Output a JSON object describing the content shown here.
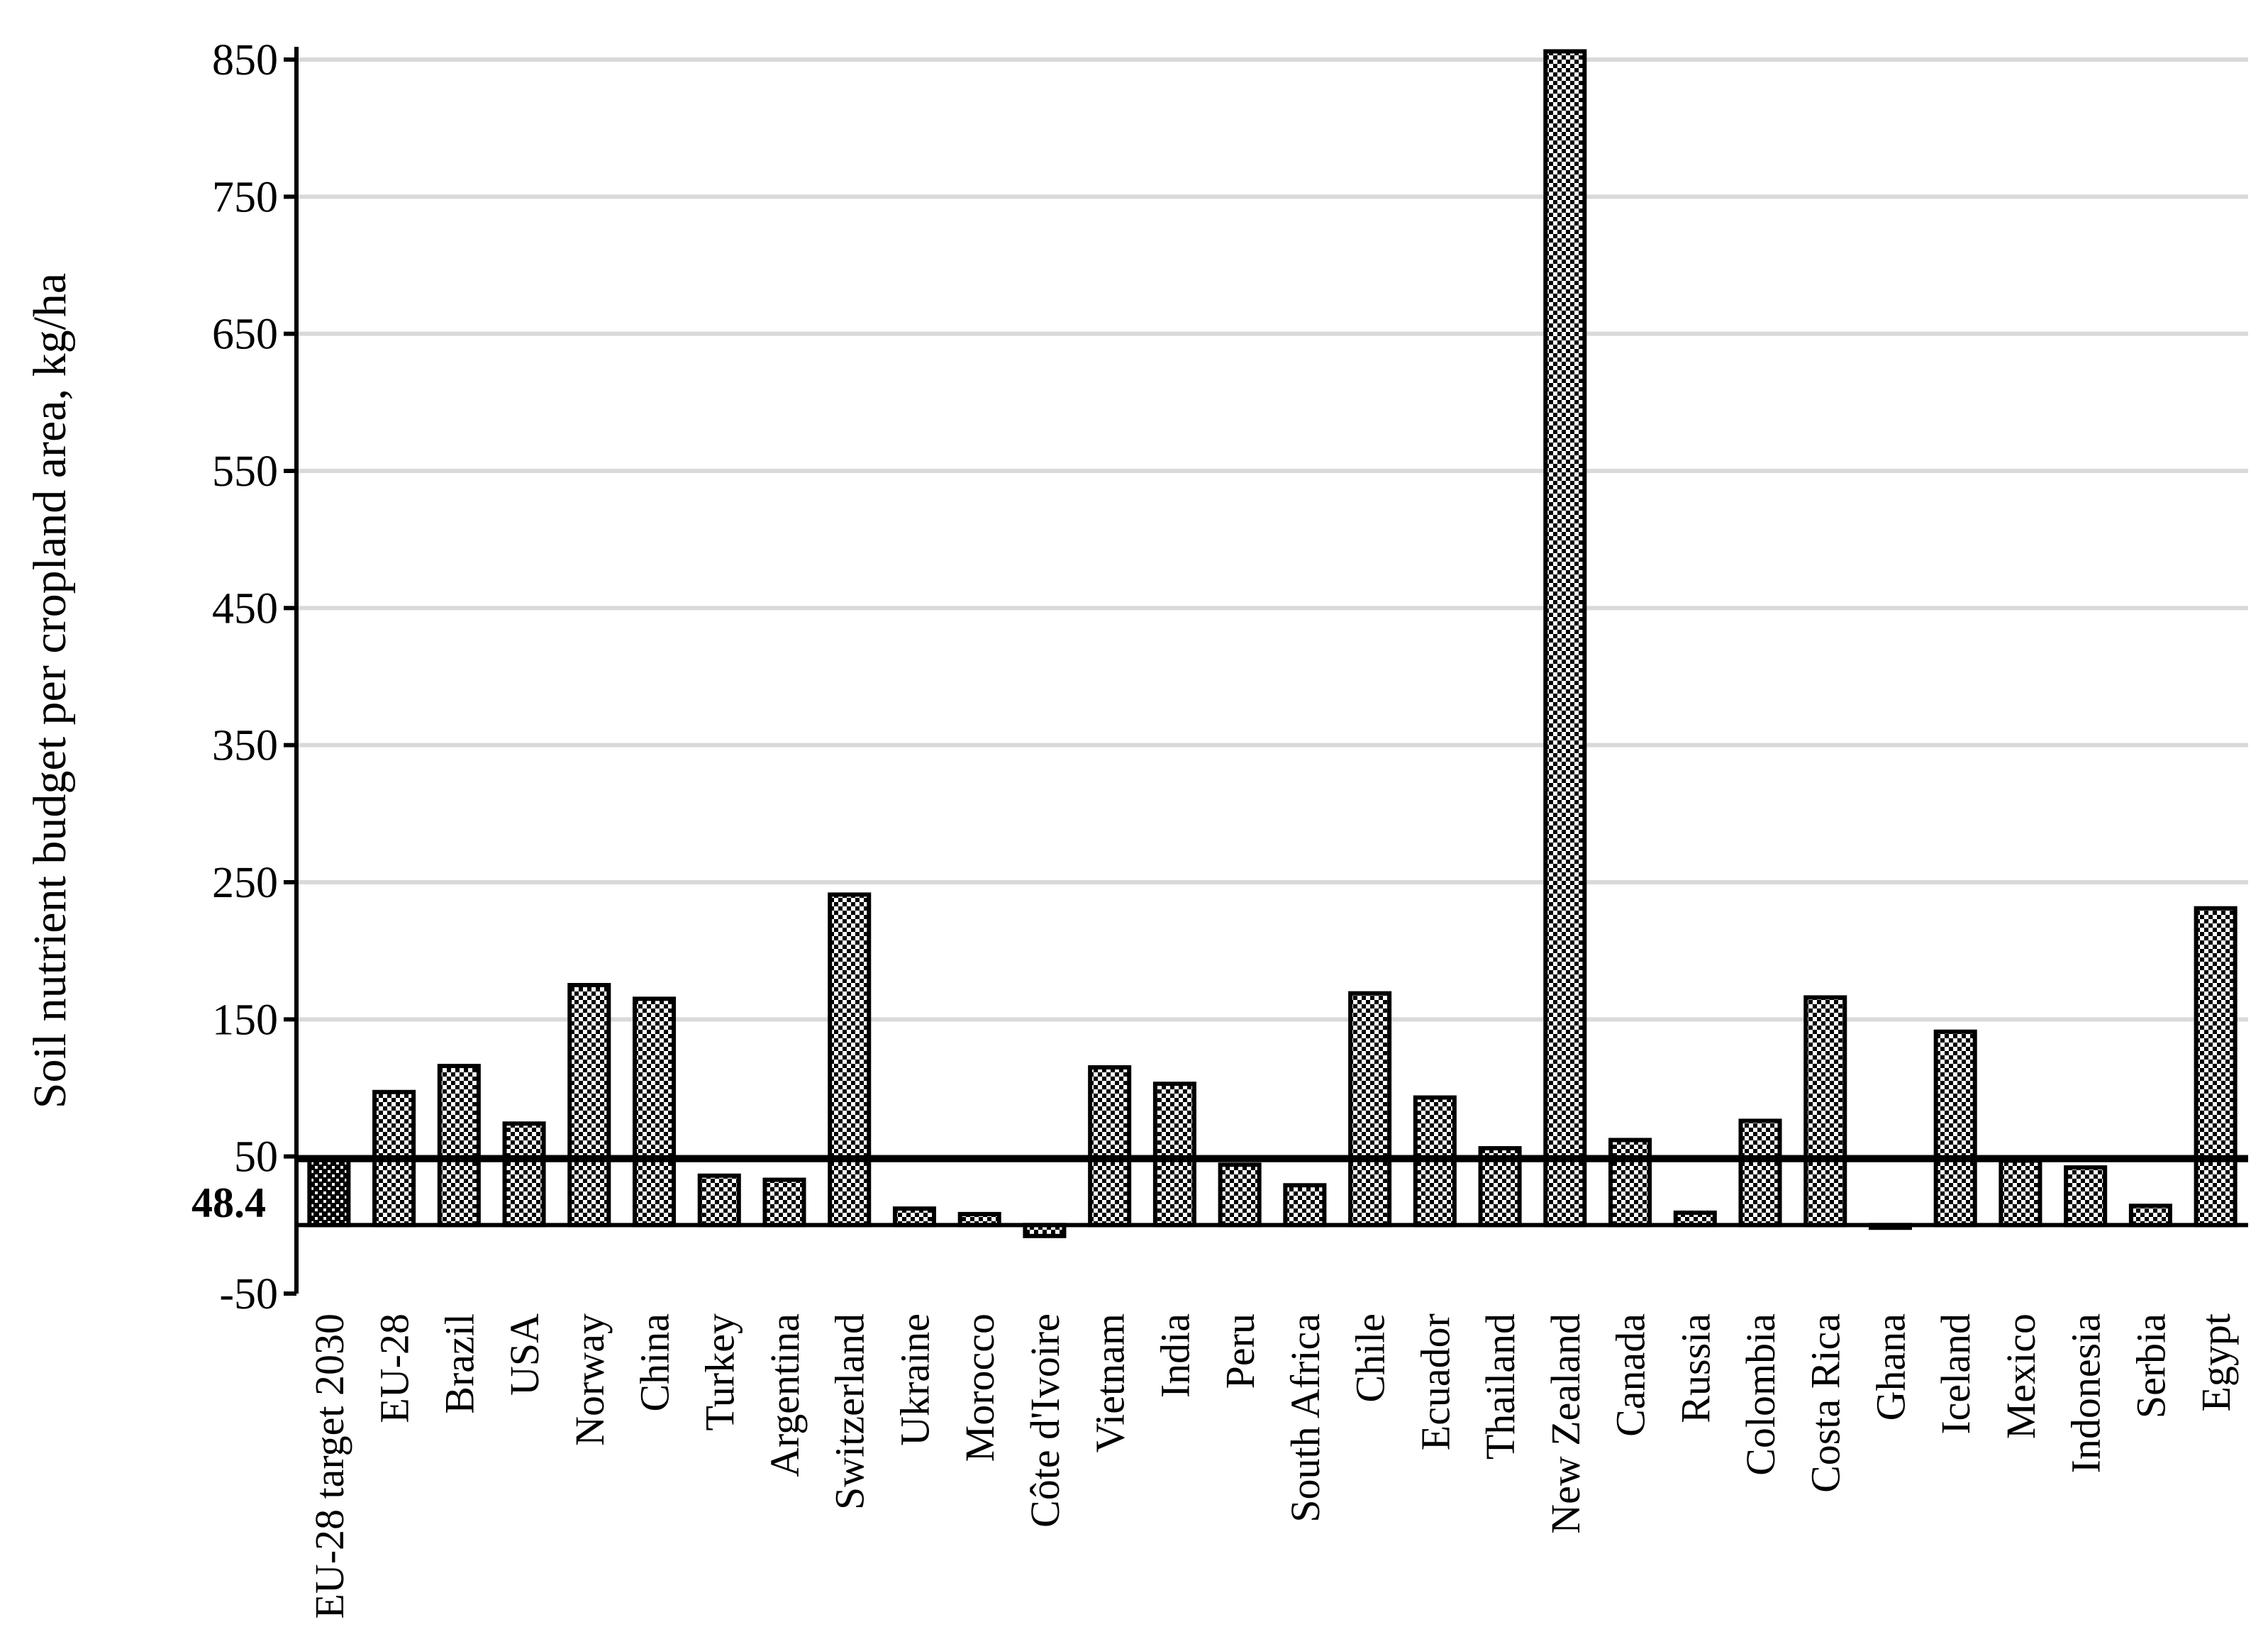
{
  "chart_data": {
    "type": "bar",
    "title": "",
    "xlabel": "",
    "ylabel": "Soil nutrient budget per cropland area, kg/ha",
    "ylim": [
      -50,
      850
    ],
    "yticks": [
      -50,
      50,
      150,
      250,
      350,
      450,
      550,
      650,
      750,
      850
    ],
    "grid": true,
    "legend": "none",
    "categories": [
      "EU-28 target 2030",
      "EU-28",
      "Brazil",
      "USA",
      "Norway",
      "China",
      "Turkey",
      "Argentina",
      "Switzerland",
      "Ukraine",
      "Morocco",
      "Côte d'Ivoire",
      "Vietnam",
      "India",
      "Peru",
      "South Africa",
      "Chile",
      "Ecuador",
      "Thailand",
      "New Zealand",
      "Canada",
      "Russia",
      "Colombia",
      "Costa Rica",
      "Ghana",
      "Iceland",
      "Mexico",
      "Indonesia",
      "Serbia",
      "Egypt"
    ],
    "values": [
      48.4,
      97,
      116,
      74,
      175,
      165,
      36,
      33,
      241,
      12,
      8,
      -8,
      115,
      103,
      44,
      29,
      169,
      93,
      56,
      856,
      62,
      9,
      76,
      166,
      -2,
      141,
      47,
      42,
      14,
      231
    ],
    "reference_line": {
      "value": 48.4,
      "label": "48.4"
    },
    "colors": {
      "bar_fill": "checkerboard",
      "bar_stroke": "#000000",
      "target_bar_fill": "#000000",
      "gridline": "#d9d9d9",
      "axis": "#000000"
    }
  }
}
